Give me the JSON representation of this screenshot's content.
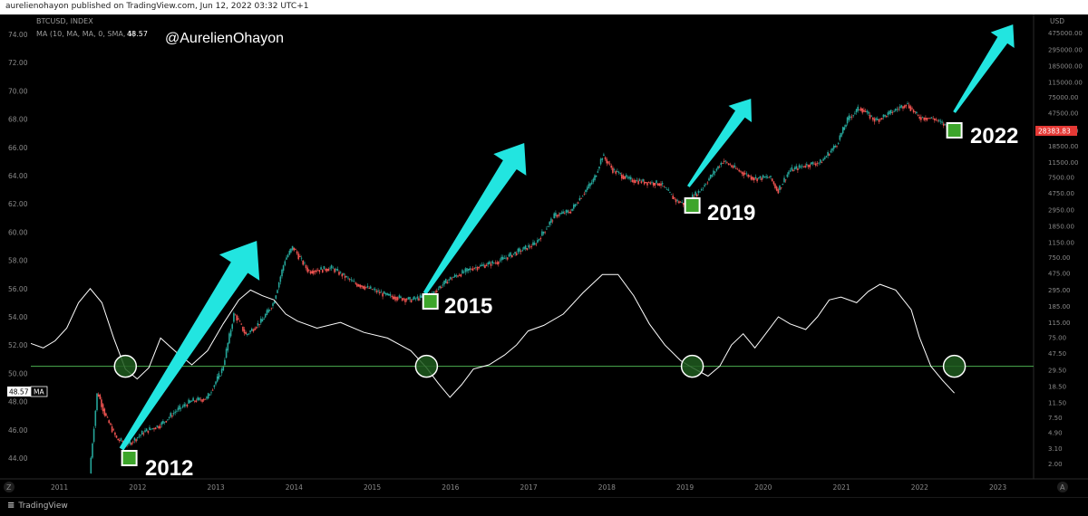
{
  "header": {
    "attribution": "aurelienohayon published on TradingView.com, Jun 12, 2022 03:32 UTC+1"
  },
  "legend": {
    "symbol": "BTCUSD, INDEX",
    "indicator": "MA (10, MA, MA, 0, SMA, 5)",
    "indicator_value": "48.57",
    "author": "@AurelienOhayon"
  },
  "footer": {
    "logo_text": "TradingView"
  },
  "colors": {
    "background": "#000000",
    "up_candle": "#26a69a",
    "down_candle": "#ef5350",
    "ma_line": "#ffffff",
    "threshold_line": "#4caf50",
    "arrow": "#22e5e0",
    "marker": "#3da52b",
    "price_badge": "#e53935"
  },
  "chart_data": {
    "type": "line",
    "x_axis": {
      "ticks": [
        "2011",
        "2012",
        "2013",
        "2014",
        "2015",
        "2016",
        "2017",
        "2018",
        "2019",
        "2020",
        "2021",
        "2022",
        "2023"
      ]
    },
    "y_left": {
      "label": "",
      "range": [
        42.5,
        75
      ],
      "ticks": [
        "74.00",
        "72.00",
        "70.00",
        "68.00",
        "66.00",
        "64.00",
        "62.00",
        "60.00",
        "58.00",
        "56.00",
        "54.00",
        "52.00",
        "50.00",
        "48.00",
        "46.00",
        "44.00"
      ]
    },
    "y_right": {
      "label": "USD",
      "scale": "log",
      "ticks": [
        "475000.00",
        "295000.00",
        "185000.00",
        "115000.00",
        "75000.00",
        "47500.00",
        "28500.00",
        "18500.00",
        "11500.00",
        "7500.00",
        "4750.00",
        "2950.00",
        "1850.00",
        "1150.00",
        "750.00",
        "475.00",
        "295.00",
        "185.00",
        "115.00",
        "75.00",
        "47.50",
        "29.50",
        "18.50",
        "11.50",
        "7.50",
        "4.90",
        "3.10",
        "2.00"
      ]
    },
    "current_price": "28383.83",
    "current_ma": "48.57",
    "ma_badge_label": "MA",
    "threshold_level": 50.5,
    "series": [
      {
        "kind": "ma",
        "x": [
          2010.6,
          2010.8,
          2010.95,
          2011.1,
          2011.25,
          2011.4,
          2011.55,
          2011.7,
          2011.85,
          2012.0,
          2012.15,
          2012.3,
          2012.5,
          2012.7,
          2012.9,
          2013.1,
          2013.3,
          2013.45,
          2013.6,
          2013.75,
          2013.9,
          2014.05,
          2014.3,
          2014.6,
          2014.9,
          2015.2,
          2015.5,
          2015.7,
          2015.85,
          2016.0,
          2016.15,
          2016.3,
          2016.5,
          2016.7,
          2016.85,
          2017.0,
          2017.2,
          2017.45,
          2017.7,
          2017.95,
          2018.15,
          2018.35,
          2018.55,
          2018.75,
          2018.95,
          2019.1,
          2019.3,
          2019.45,
          2019.6,
          2019.75,
          2019.9,
          2020.05,
          2020.2,
          2020.35,
          2020.55,
          2020.7,
          2020.85,
          2021.0,
          2021.2,
          2021.35,
          2021.5,
          2021.7,
          2021.9,
          2022.0,
          2022.15,
          2022.3,
          2022.45
        ],
        "y": [
          52.2,
          51.8,
          52.3,
          53.2,
          55.0,
          56.0,
          55.0,
          52.5,
          50.3,
          49.6,
          50.4,
          52.5,
          51.5,
          50.6,
          51.6,
          53.5,
          55.2,
          55.9,
          55.5,
          55.2,
          54.2,
          53.7,
          53.2,
          53.6,
          52.9,
          52.5,
          51.6,
          50.4,
          49.3,
          48.3,
          49.2,
          50.3,
          50.6,
          51.3,
          52.0,
          53.0,
          53.4,
          54.2,
          55.7,
          57.0,
          57.0,
          55.5,
          53.5,
          52.0,
          50.9,
          50.4,
          49.8,
          50.5,
          52.0,
          52.8,
          51.8,
          52.9,
          54.0,
          53.5,
          53.1,
          54.0,
          55.2,
          55.4,
          55.0,
          55.8,
          56.3,
          55.9,
          54.5,
          52.6,
          50.5,
          49.5,
          48.6
        ]
      },
      {
        "kind": "btc_price",
        "x": [
          2011.4,
          2011.5,
          2011.6,
          2011.75,
          2011.9,
          2012.1,
          2012.3,
          2012.5,
          2012.7,
          2012.9,
          2013.1,
          2013.25,
          2013.4,
          2013.6,
          2013.75,
          2013.9,
          2014.0,
          2014.2,
          2014.5,
          2014.8,
          2015.0,
          2015.2,
          2015.5,
          2015.75,
          2016.0,
          2016.3,
          2016.6,
          2016.9,
          2017.1,
          2017.35,
          2017.55,
          2017.7,
          2017.85,
          2017.96,
          2018.1,
          2018.3,
          2018.5,
          2018.7,
          2018.9,
          2019.0,
          2019.2,
          2019.4,
          2019.5,
          2019.7,
          2019.9,
          2020.1,
          2020.2,
          2020.35,
          2020.55,
          2020.75,
          2020.95,
          2021.1,
          2021.25,
          2021.45,
          2021.6,
          2021.85,
          2022.0,
          2022.2,
          2022.45
        ],
        "y": [
          1.5,
          16,
          8,
          4,
          3.5,
          5,
          6,
          9,
          12,
          13,
          30,
          150,
          80,
          120,
          200,
          700,
          1000,
          500,
          550,
          350,
          300,
          250,
          220,
          250,
          400,
          550,
          650,
          900,
          1100,
          2500,
          2800,
          4500,
          7000,
          14000,
          9000,
          7000,
          6500,
          6200,
          3800,
          3500,
          5000,
          9000,
          12000,
          9000,
          7200,
          7500,
          5000,
          9000,
          10500,
          11500,
          19000,
          40000,
          55000,
          38000,
          45000,
          62000,
          42000,
          40000,
          28383
        ]
      }
    ],
    "annotations": [
      "2012",
      "2015",
      "2019",
      "2022"
    ]
  }
}
